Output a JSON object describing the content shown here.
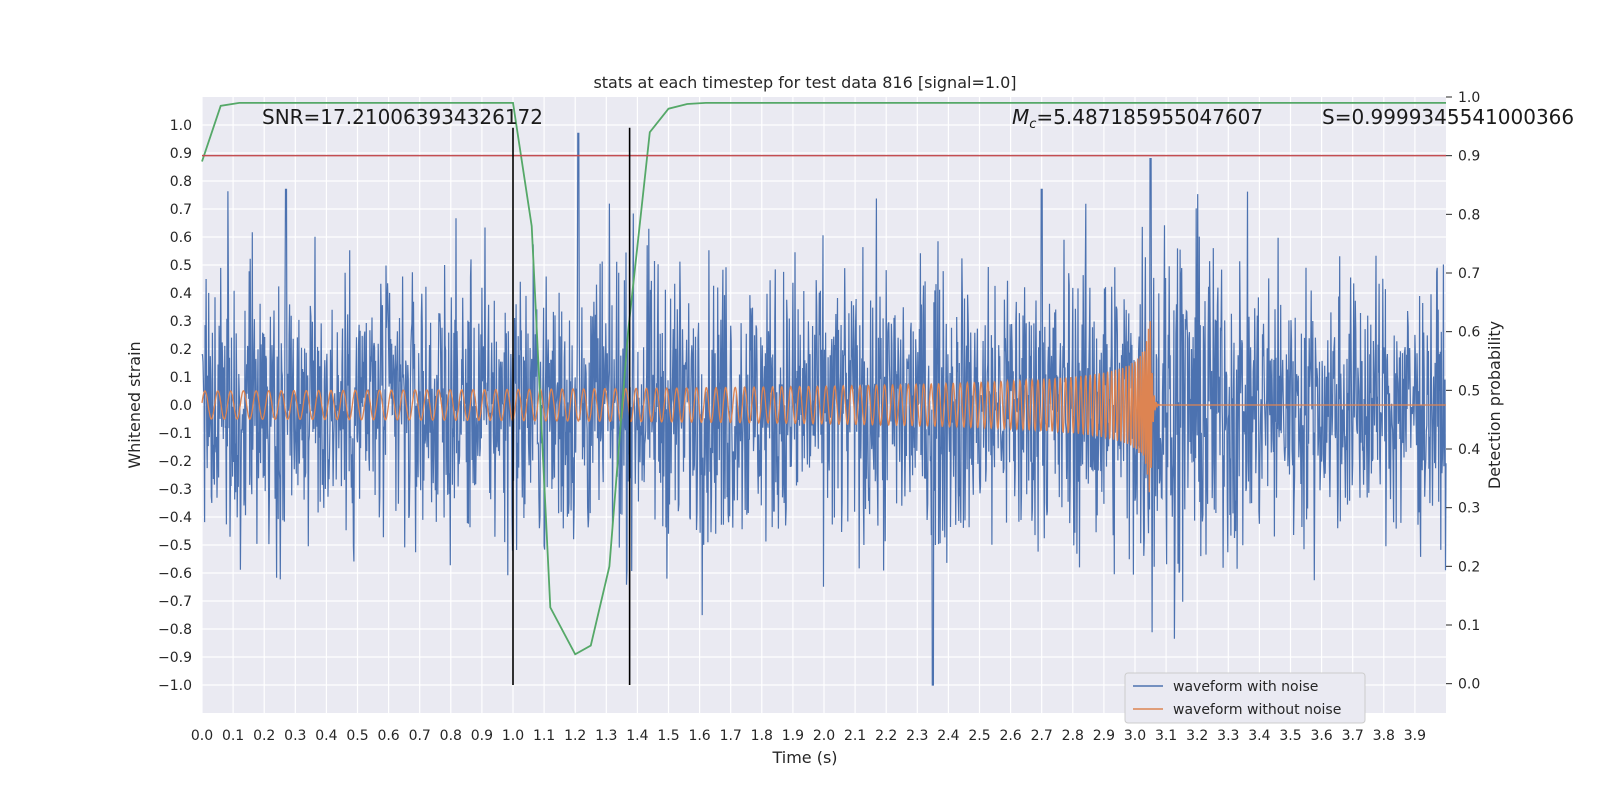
{
  "chart_data": {
    "type": "line",
    "title": "stats at each timestep for test data 816 [signal=1.0]",
    "xlabel": "Time (s)",
    "ylabel": "Whitened strain",
    "y2label": "Detection probability",
    "xlim": [
      0.0,
      4.0
    ],
    "ylim": [
      -1.1,
      1.1
    ],
    "y2lim": [
      -0.05,
      1.0
    ],
    "x_ticks": [
      "0.0",
      "0.1",
      "0.2",
      "0.3",
      "0.4",
      "0.5",
      "0.6",
      "0.7",
      "0.8",
      "0.9",
      "1.0",
      "1.1",
      "1.2",
      "1.3",
      "1.4",
      "1.5",
      "1.6",
      "1.7",
      "1.8",
      "1.9",
      "2.0",
      "2.1",
      "2.2",
      "2.3",
      "2.4",
      "2.5",
      "2.6",
      "2.7",
      "2.8",
      "2.9",
      "3.0",
      "3.1",
      "3.2",
      "3.3",
      "3.4",
      "3.5",
      "3.6",
      "3.7",
      "3.8",
      "3.9"
    ],
    "y_ticks": [
      "1.0",
      "0.9",
      "0.8",
      "0.7",
      "0.6",
      "0.5",
      "0.4",
      "0.3",
      "0.2",
      "0.1",
      "0.0",
      "−0.1",
      "−0.2",
      "−0.3",
      "−0.4",
      "−0.5",
      "−0.6",
      "−0.7",
      "−0.8",
      "−0.9",
      "−1.0"
    ],
    "y2_ticks": [
      "1.0",
      "0.9",
      "0.8",
      "0.7",
      "0.6",
      "0.5",
      "0.4",
      "0.3",
      "0.2",
      "0.1",
      "0.0"
    ],
    "annotations": {
      "snr": "SNR=17.210063934326172",
      "mc_symbol": "M",
      "mc_sub": "c",
      "mc_value": "=5.487185955047607",
      "s": "S=0.9999345541000366"
    },
    "noise_envelope": {
      "x": [
        0.0,
        0.5,
        1.0,
        1.5,
        2.0,
        2.5,
        3.0,
        3.05,
        3.5,
        4.0
      ],
      "amplitude": [
        0.55,
        0.55,
        0.55,
        0.55,
        0.55,
        0.55,
        0.6,
        0.8,
        0.5,
        0.5
      ],
      "peaks": [
        [
          0.27,
          0.77
        ],
        [
          1.21,
          0.97
        ],
        [
          2.35,
          -1.0
        ],
        [
          3.05,
          0.88
        ],
        [
          2.7,
          0.77
        ]
      ]
    },
    "clean_waveform": {
      "merger_time": 3.05,
      "start_amplitude": 0.05,
      "merger_amplitude": 0.38,
      "start_frequency": 24,
      "merger_frequency": 160,
      "post_merger_value": 0.0
    },
    "detection_probability": {
      "x": [
        0.0,
        0.06,
        0.12,
        0.2,
        0.3,
        0.4,
        0.5,
        0.6,
        0.7,
        0.8,
        0.9,
        1.0,
        1.06,
        1.12,
        1.2,
        1.25,
        1.31,
        1.37,
        1.44,
        1.5,
        1.56,
        1.62,
        1.7,
        2.0,
        2.5,
        3.0,
        3.5,
        4.0
      ],
      "values": [
        0.89,
        0.985,
        0.99,
        0.99,
        0.99,
        0.99,
        0.99,
        0.99,
        0.99,
        0.99,
        0.99,
        0.99,
        0.78,
        0.13,
        0.05,
        0.065,
        0.2,
        0.6,
        0.94,
        0.98,
        0.988,
        0.99,
        0.99,
        0.99,
        0.99,
        0.99,
        0.99,
        0.99
      ]
    },
    "threshold": {
      "value": 0.9,
      "axis": "y2",
      "color": "#c44e52"
    },
    "vertical_lines": [
      1.0,
      1.375
    ],
    "series": [
      {
        "name": "waveform with noise",
        "color": "#4c72b0"
      },
      {
        "name": "waveform without noise",
        "color": "#dd8452"
      },
      {
        "name": "detection probability",
        "color": "#55a868"
      }
    ],
    "legend_location": "lower-right",
    "grid": true
  }
}
